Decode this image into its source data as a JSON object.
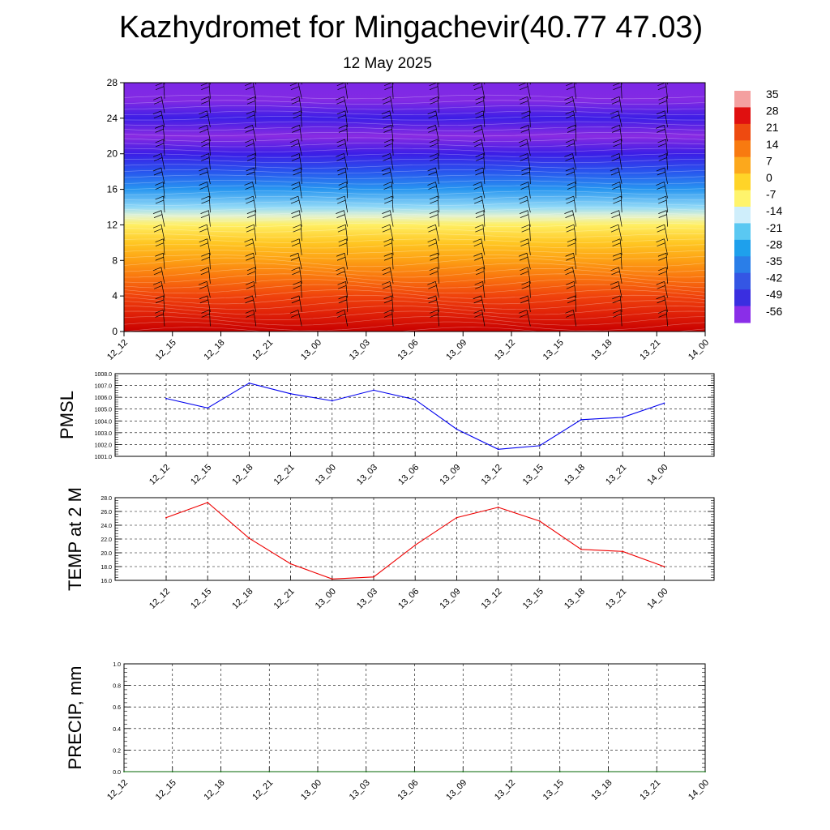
{
  "page": {
    "title": "Kazhydromet for Mingachevir(40.77 47.03)",
    "subtitle": "12 May 2025"
  },
  "chart_data": [
    {
      "id": "cross-section",
      "type": "heatmap",
      "title": "",
      "xlabel": "",
      "ylabel": "",
      "x_tick_labels": [
        "12_12",
        "12_15",
        "12_18",
        "12_21",
        "13_00",
        "13_03",
        "13_06",
        "13_09",
        "13_12",
        "13_15",
        "13_18",
        "13_21",
        "14_00"
      ],
      "y_ticks": [
        0,
        4,
        8,
        12,
        16,
        20,
        24,
        28
      ],
      "ylim": [
        0,
        28
      ],
      "temperature_profile": [
        {
          "level": 0,
          "value": 28
        },
        {
          "level": 2,
          "value": 24
        },
        {
          "level": 4,
          "value": 20
        },
        {
          "level": 6,
          "value": 14
        },
        {
          "level": 8,
          "value": 8
        },
        {
          "level": 10,
          "value": 2
        },
        {
          "level": 12,
          "value": -6
        },
        {
          "level": 13,
          "value": -12
        },
        {
          "level": 14,
          "value": -18
        },
        {
          "level": 16,
          "value": -32
        },
        {
          "level": 18,
          "value": -44
        },
        {
          "level": 20,
          "value": -56
        },
        {
          "level": 22,
          "value": -60
        },
        {
          "level": 24,
          "value": -56
        },
        {
          "level": 26,
          "value": -62
        },
        {
          "level": 28,
          "value": -64
        }
      ],
      "colorbar_labels": [
        "35",
        "28",
        "21",
        "14",
        "7",
        "0",
        "-7",
        "-14",
        "-21",
        "-28",
        "-35",
        "-42",
        "-49",
        "-56"
      ],
      "colorbar_colors": [
        "#f4a0a0",
        "#e01010",
        "#ee4a10",
        "#f87a10",
        "#fca81c",
        "#ffd428",
        "#fff46c",
        "#cfeefb",
        "#5ac8f2",
        "#1ea0ec",
        "#2a7ee8",
        "#3456e4",
        "#3a2ee0",
        "#8a2ee8"
      ],
      "colors": {
        "hot": "#c80000",
        "warm": "#ff6e00",
        "mid": "#ffe040",
        "cool": "#40c0f0",
        "cold": "#2020f0",
        "top": "#8a2be2"
      }
    },
    {
      "id": "pmsl",
      "type": "line",
      "title": "",
      "xlabel": "",
      "ylabel": "PMSL",
      "categories": [
        "12_12",
        "12_15",
        "12_18",
        "12_21",
        "13_00",
        "13_03",
        "13_06",
        "13_09",
        "13_12",
        "13_15",
        "13_18",
        "13_21",
        "14_00"
      ],
      "values": [
        1005.9,
        1005.1,
        1007.2,
        1006.3,
        1005.7,
        1006.6,
        1005.8,
        1003.3,
        1001.6,
        1001.9,
        1004.1,
        1004.3,
        1005.5
      ],
      "y_tick_labels": [
        "1001.0",
        "1002.0",
        "1003.0",
        "1004.0",
        "1005.0",
        "1006.0",
        "1007.0",
        "1008.0"
      ],
      "ylim": [
        1001.0,
        1008.0
      ],
      "grid": true,
      "color": "#0000ee"
    },
    {
      "id": "temp2m",
      "type": "line",
      "title": "",
      "xlabel": "",
      "ylabel": "TEMP at 2 M",
      "categories": [
        "12_12",
        "12_15",
        "12_18",
        "12_21",
        "13_00",
        "13_03",
        "13_06",
        "13_09",
        "13_12",
        "13_15",
        "13_18",
        "13_21",
        "14_00"
      ],
      "values": [
        25.1,
        27.3,
        22.1,
        18.4,
        16.2,
        16.5,
        21.1,
        25.1,
        26.6,
        24.6,
        20.5,
        20.2,
        18.0
      ],
      "y_tick_labels": [
        "16.0",
        "18.0",
        "20.0",
        "22.0",
        "24.0",
        "26.0",
        "28.0"
      ],
      "ylim": [
        16.0,
        28.0
      ],
      "grid": true,
      "color": "#ee0000"
    },
    {
      "id": "precip",
      "type": "line",
      "title": "",
      "xlabel": "",
      "ylabel": "PRECIP, mm",
      "categories": [
        "12_12",
        "12_15",
        "12_18",
        "12_21",
        "13_00",
        "13_03",
        "13_06",
        "13_09",
        "13_12",
        "13_15",
        "13_18",
        "13_21",
        "14_00"
      ],
      "values": [
        0,
        0,
        0,
        0,
        0,
        0,
        0,
        0,
        0,
        0,
        0,
        0,
        0
      ],
      "y_tick_labels": [
        "0.0",
        "0.2",
        "0.4",
        "0.6",
        "0.8",
        "1.0"
      ],
      "ylim": [
        0.0,
        1.0
      ],
      "grid": true,
      "color": "#006400"
    }
  ]
}
